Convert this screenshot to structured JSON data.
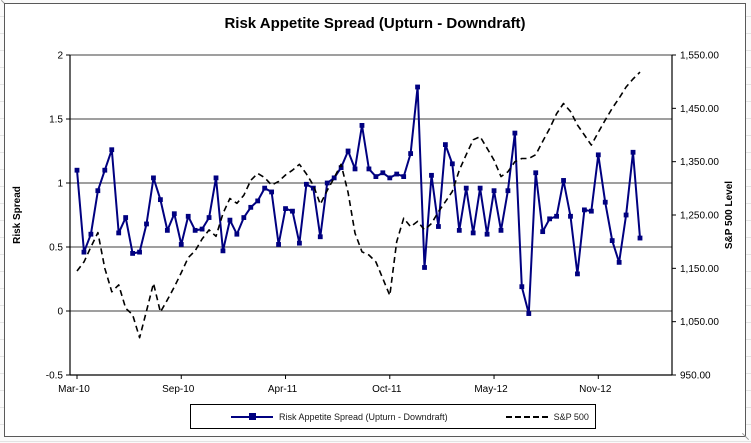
{
  "chart_data": {
    "type": "line",
    "title": "Risk Appetite Spread (Upturn - Downdraft)",
    "left_axis": {
      "label": "Risk Spread",
      "min": -0.5,
      "max": 2,
      "step": 0.5,
      "tick_labels": [
        "2",
        "1.5",
        "1",
        "0.5",
        "0",
        "-0.5"
      ]
    },
    "right_axis": {
      "label": "S&P 500 Level",
      "min": 950,
      "max": 1550,
      "step": 100,
      "tick_labels": [
        "1,550.00",
        "1,450.00",
        "1,350.00",
        "1,250.00",
        "1,150.00",
        "1,050.00",
        "950.00"
      ]
    },
    "x_axis": {
      "tick_labels": [
        "Mar-10",
        "Sep-10",
        "Apr-11",
        "Oct-11",
        "May-12",
        "Nov-12"
      ],
      "tick_indices": [
        0,
        15,
        30,
        45,
        60,
        75
      ],
      "point_count": 82
    },
    "grid": "horizontal",
    "legend_position": "bottom",
    "series": [
      {
        "name": "Risk Appetite Spread (Upturn - Downdraft)",
        "axis": "left",
        "color": "#000080",
        "style": "solid",
        "marker": "square",
        "values": [
          1.1,
          0.46,
          0.6,
          0.94,
          1.1,
          1.26,
          0.61,
          0.73,
          0.45,
          0.46,
          0.68,
          1.04,
          0.87,
          0.63,
          0.76,
          0.52,
          0.74,
          0.63,
          0.64,
          0.73,
          1.04,
          0.47,
          0.71,
          0.6,
          0.73,
          0.81,
          0.86,
          0.96,
          0.93,
          0.52,
          0.8,
          0.78,
          0.53,
          0.99,
          0.96,
          0.58,
          1.0,
          1.04,
          1.12,
          1.25,
          1.11,
          1.45,
          1.11,
          1.05,
          1.08,
          1.04,
          1.07,
          1.05,
          1.23,
          1.75,
          0.34,
          1.06,
          0.66,
          1.3,
          1.15,
          0.63,
          0.96,
          0.61,
          0.96,
          0.6,
          0.94,
          0.63,
          0.94,
          1.39,
          0.19,
          -0.02,
          1.08,
          0.62,
          0.72,
          0.74,
          1.02,
          0.74,
          0.29,
          0.79,
          0.78,
          1.22,
          0.85,
          0.55,
          0.38,
          0.75,
          1.24,
          0.57
        ]
      },
      {
        "name": "S&P 500",
        "axis": "right",
        "color": "#000000",
        "style": "dashed",
        "marker": "none",
        "values": [
          1145,
          1162,
          1190,
          1217,
          1150,
          1106,
          1119,
          1075,
          1063,
          1020,
          1070,
          1122,
          1068,
          1091,
          1115,
          1142,
          1170,
          1183,
          1205,
          1222,
          1210,
          1253,
          1281,
          1272,
          1287,
          1315,
          1328,
          1320,
          1306,
          1313,
          1325,
          1334,
          1345,
          1327,
          1306,
          1270,
          1296,
          1320,
          1345,
          1292,
          1216,
          1181,
          1175,
          1162,
          1131,
          1099,
          1200,
          1244,
          1228,
          1238,
          1222,
          1234,
          1256,
          1275,
          1294,
          1334,
          1363,
          1391,
          1397,
          1375,
          1353,
          1322,
          1331,
          1350,
          1356,
          1356,
          1363,
          1388,
          1412,
          1440,
          1459,
          1444,
          1419,
          1400,
          1381,
          1405,
          1428,
          1450,
          1469,
          1490,
          1505,
          1518
        ]
      }
    ]
  }
}
